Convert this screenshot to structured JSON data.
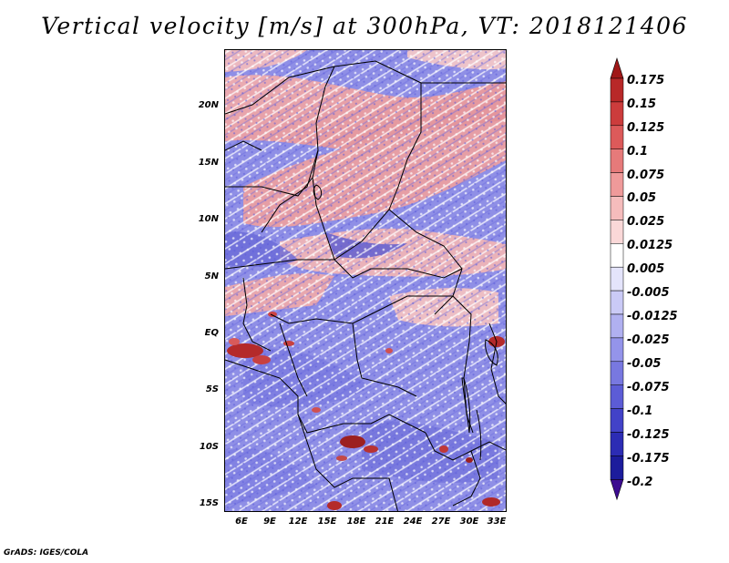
{
  "title": "Vertical velocity [m/s] at 300hPa, VT: 2018121406",
  "footer": "GrADS: IGES/COLA",
  "map": {
    "region": "Central Africa",
    "lat_labels": [
      "20N",
      "15N",
      "10N",
      "5N",
      "EQ",
      "5S",
      "10S",
      "15S"
    ],
    "lon_labels": [
      "6E",
      "9E",
      "12E",
      "15E",
      "18E",
      "21E",
      "24E",
      "27E",
      "30E",
      "33E"
    ]
  },
  "colorbar": {
    "levels": [
      "0.175",
      "0.15",
      "0.125",
      "0.1",
      "0.075",
      "0.05",
      "0.025",
      "0.0125",
      "0.005",
      "-0.005",
      "-0.0125",
      "-0.025",
      "-0.05",
      "-0.075",
      "-0.1",
      "-0.125",
      "-0.175",
      "-0.2"
    ],
    "colors": [
      "#a01818",
      "#b82828",
      "#cc3c3c",
      "#dc5a5a",
      "#e67a7a",
      "#ef9a9a",
      "#f5bcbc",
      "#fad8d8",
      "#ffffff",
      "#e4e4fb",
      "#cacaf6",
      "#b0b0f0",
      "#9494ea",
      "#7878e0",
      "#5c5cd6",
      "#4242c8",
      "#2c2cb4",
      "#1c1c9c",
      "#3c0c90"
    ]
  }
}
